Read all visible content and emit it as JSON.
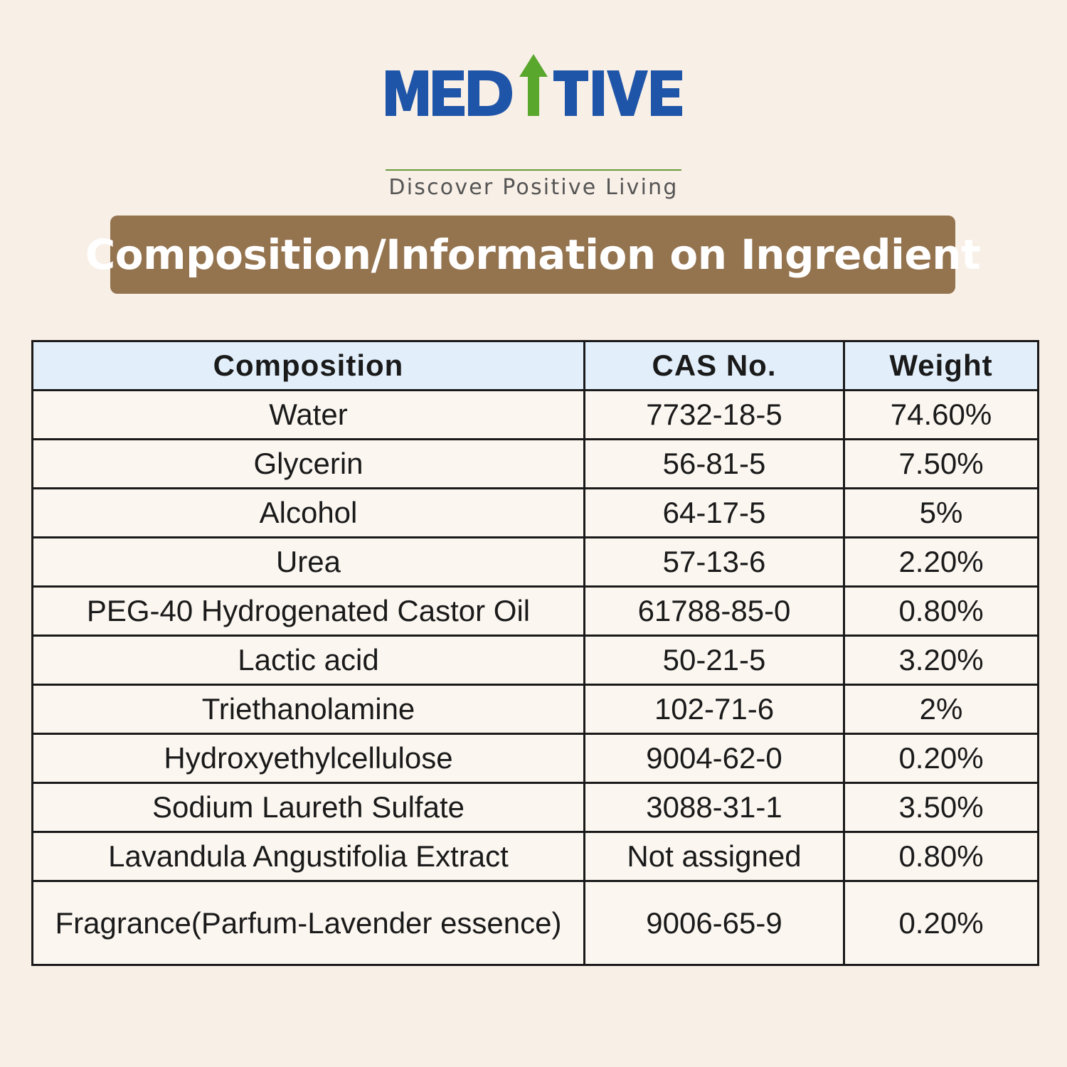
{
  "brand": {
    "name": "MEDITIVE",
    "tagline": "Discover Positive Living",
    "colors": {
      "wordmark": "#1f55a8",
      "arrow": "#5aa72e",
      "tagline": "#555555"
    }
  },
  "banner": {
    "title": "Composition/Information on Ingredient",
    "background": "#94734f"
  },
  "table": {
    "headers": [
      "Composition",
      "CAS No.",
      "Weight"
    ],
    "header_background": "#e2effb",
    "rows": [
      {
        "composition": "Water",
        "cas": "7732-18-5",
        "weight": "74.60%"
      },
      {
        "composition": "Glycerin",
        "cas": "56-81-5",
        "weight": "7.50%"
      },
      {
        "composition": "Alcohol",
        "cas": "64-17-5",
        "weight": "5%"
      },
      {
        "composition": "Urea",
        "cas": "57-13-6",
        "weight": "2.20%"
      },
      {
        "composition": "PEG-40 Hydrogenated Castor Oil",
        "cas": "61788-85-0",
        "weight": "0.80%"
      },
      {
        "composition": "Lactic acid",
        "cas": "50-21-5",
        "weight": "3.20%"
      },
      {
        "composition": "Triethanolamine",
        "cas": "102-71-6",
        "weight": "2%"
      },
      {
        "composition": "Hydroxyethylcellulose",
        "cas": "9004-62-0",
        "weight": "0.20%"
      },
      {
        "composition": "Sodium Laureth Sulfate",
        "cas": "3088-31-1",
        "weight": "3.50%"
      },
      {
        "composition": "Lavandula Angustifolia Extract",
        "cas": "Not assigned",
        "weight": "0.80%"
      },
      {
        "composition": "Fragrance(Parfum-Lavender essence)",
        "cas": "9006-65-9",
        "weight": "0.20%"
      }
    ]
  }
}
